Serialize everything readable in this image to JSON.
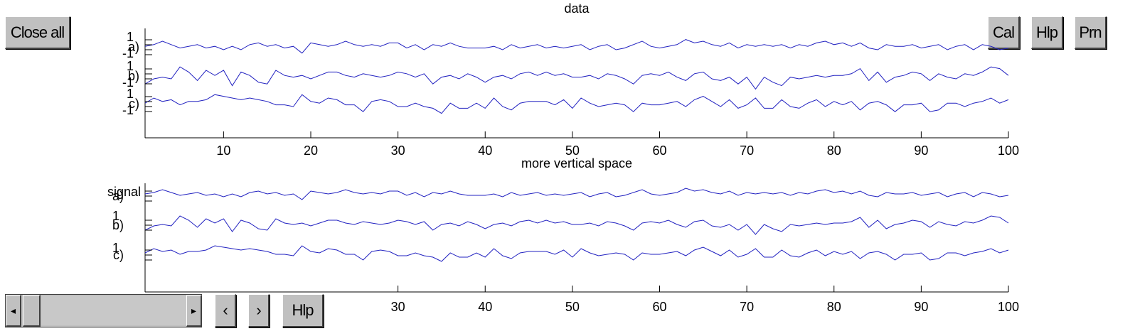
{
  "buttons": {
    "close_all": "Close all",
    "cal": "Cal",
    "hlp_top": "Hlp",
    "prn": "Prn",
    "prev": "‹",
    "next": "›",
    "hlp_bottom": "Hlp"
  },
  "scrollbar": {
    "left_arrow": "◂",
    "right_arrow": "▸"
  },
  "colors": {
    "line": "#2020c0",
    "axis": "#000000",
    "button": "#c0c0c0"
  },
  "chart_data": [
    {
      "type": "line",
      "title": "data",
      "xlabel": "",
      "xlim": [
        1,
        100
      ],
      "xticks": [
        "10",
        "20",
        "30",
        "40",
        "50",
        "60",
        "70",
        "80",
        "90",
        "100"
      ],
      "y_tick_labels": [
        "1",
        "-1"
      ],
      "series": [
        {
          "name": "a)",
          "values": [
            0.2,
            0.3,
            0.5,
            0.3,
            0.1,
            0.2,
            0.3,
            0.1,
            0.2,
            0.0,
            0.2,
            0.0,
            0.3,
            0.4,
            0.2,
            0.3,
            0.1,
            0.2,
            -0.2,
            0.4,
            0.3,
            0.2,
            0.3,
            0.5,
            0.3,
            0.2,
            0.3,
            0.2,
            0.4,
            0.4,
            0.1,
            0.3,
            0.0,
            0.3,
            0.2,
            0.4,
            0.2,
            0.1,
            0.1,
            0.1,
            0.2,
            0.0,
            0.3,
            0.1,
            0.2,
            0.3,
            0.1,
            0.2,
            0.1,
            0.2,
            0.3,
            0.0,
            0.2,
            0.3,
            0.0,
            0.1,
            0.3,
            0.5,
            0.2,
            0.1,
            0.2,
            0.3,
            0.6,
            0.4,
            0.5,
            0.3,
            0.2,
            0.4,
            0.1,
            0.3,
            0.2,
            0.3,
            0.2,
            0.3,
            0.1,
            0.3,
            0.2,
            0.4,
            0.5,
            0.3,
            0.4,
            0.2,
            0.4,
            0.1,
            0.0,
            0.3,
            0.2,
            0.2,
            0.3,
            0.1,
            0.2,
            0.3,
            0.0,
            0.2,
            0.3,
            0.0,
            0.3,
            0.2,
            0.0,
            0.1
          ]
        },
        {
          "name": "b)",
          "values": [
            -0.3,
            0.0,
            0.1,
            0.0,
            0.7,
            0.4,
            -0.1,
            0.5,
            0.2,
            0.5,
            -0.4,
            0.4,
            0.2,
            -0.2,
            -0.3,
            0.5,
            0.2,
            0.1,
            0.2,
            0.0,
            0.2,
            0.4,
            0.4,
            0.2,
            0.1,
            0.3,
            0.2,
            0.1,
            0.2,
            0.4,
            0.3,
            0.1,
            0.3,
            -0.3,
            0.1,
            0.2,
            0.0,
            0.3,
            0.1,
            -0.2,
            0.1,
            0.2,
            0.0,
            0.3,
            0.4,
            0.2,
            0.4,
            0.2,
            0.3,
            0.1,
            0.1,
            0.2,
            0.0,
            0.3,
            0.2,
            0.0,
            -0.3,
            0.2,
            0.3,
            0.2,
            0.4,
            0.1,
            -0.1,
            0.3,
            0.4,
            0.0,
            -0.1,
            0.1,
            -0.3,
            0.1,
            -0.6,
            0.1,
            -0.2,
            -0.4,
            0.1,
            0.0,
            0.1,
            0.2,
            0.1,
            0.2,
            0.2,
            0.3,
            0.6,
            -0.1,
            0.4,
            -0.2,
            0.1,
            0.2,
            0.4,
            0.3,
            -0.1,
            0.3,
            0.1,
            0.0,
            0.3,
            0.2,
            0.4,
            0.7,
            0.6,
            0.2
          ]
        },
        {
          "name": "c)",
          "values": [
            0.2,
            0.5,
            0.3,
            0.4,
            0.1,
            0.3,
            0.3,
            0.4,
            0.7,
            0.6,
            0.5,
            0.4,
            0.5,
            0.4,
            0.3,
            0.1,
            0.1,
            0.0,
            0.7,
            0.3,
            0.2,
            0.5,
            0.4,
            0.1,
            0.1,
            -0.3,
            0.3,
            0.4,
            0.3,
            0.0,
            0.0,
            0.2,
            0.0,
            -0.1,
            -0.4,
            0.2,
            -0.1,
            -0.1,
            0.2,
            -0.1,
            0.5,
            0.0,
            -0.2,
            0.2,
            0.3,
            0.3,
            0.3,
            0.1,
            0.4,
            -0.1,
            0.5,
            0.2,
            0.0,
            0.1,
            0.2,
            0.1,
            -0.3,
            0.2,
            0.1,
            0.1,
            0.2,
            0.3,
            0.0,
            0.4,
            0.6,
            0.3,
            0.0,
            0.4,
            -0.1,
            0.1,
            0.5,
            -0.1,
            -0.1,
            0.4,
            0.0,
            -0.1,
            0.2,
            0.4,
            0.0,
            0.3,
            0.1,
            0.3,
            -0.2,
            0.2,
            0.3,
            0.1,
            -0.3,
            0.1,
            0.1,
            0.2,
            -0.3,
            -0.2,
            0.2,
            0.2,
            0.0,
            0.2,
            0.3,
            0.5,
            0.2,
            0.4
          ]
        }
      ]
    },
    {
      "type": "line",
      "title": "more vertical space",
      "ylabel": "signal",
      "xlim": [
        1,
        100
      ],
      "xticks": [
        "30",
        "40",
        "50",
        "60",
        "70",
        "80",
        "90",
        "100"
      ],
      "y_tick_labels": [
        "1",
        "1"
      ]
    }
  ]
}
